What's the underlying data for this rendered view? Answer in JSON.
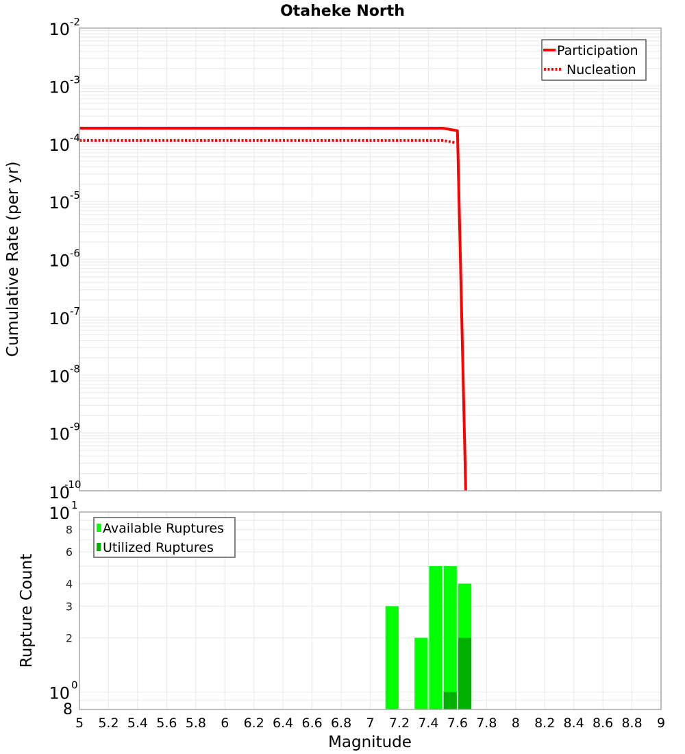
{
  "chart_data": [
    {
      "type": "line",
      "title": "Otaheke North",
      "xlabel": "Magnitude",
      "ylabel": "Cumulative Rate (per yr)",
      "xlim": [
        5,
        9
      ],
      "ylim": [
        1e-10,
        0.01
      ],
      "yscale": "log",
      "grid": true,
      "legend_position": "upper right",
      "x_ticks": [
        "5",
        "5.2",
        "5.4",
        "5.6",
        "5.8",
        "6",
        "6.2",
        "6.4",
        "6.6",
        "6.8",
        "7",
        "7.2",
        "7.4",
        "7.6",
        "7.8",
        "8",
        "8.2",
        "8.4",
        "8.6",
        "8.8",
        "9"
      ],
      "y_ticks": [
        {
          "base": "10",
          "exp": "-2",
          "value": 0.01
        },
        {
          "base": "10",
          "exp": "-3",
          "value": 0.001
        },
        {
          "base": "10",
          "exp": "-4",
          "value": 0.0001
        },
        {
          "base": "10",
          "exp": "-5",
          "value": 1e-05
        },
        {
          "base": "10",
          "exp": "-6",
          "value": 1e-06
        },
        {
          "base": "10",
          "exp": "-7",
          "value": 1e-07
        },
        {
          "base": "10",
          "exp": "-8",
          "value": 1e-08
        },
        {
          "base": "10",
          "exp": "-9",
          "value": 1e-09
        },
        {
          "base": "10",
          "exp": "-10",
          "value": 1e-10
        }
      ],
      "series": [
        {
          "name": "Participation",
          "style": "solid",
          "color": "#ff0000",
          "x": [
            5.0,
            7.5,
            7.6,
            7.657
          ],
          "y": [
            0.000186,
            0.000186,
            0.000168,
            1e-10
          ]
        },
        {
          "name": "Nucleation",
          "style": "dotted",
          "color": "#ff0000",
          "x": [
            5.0,
            7.5,
            7.59
          ],
          "y": [
            0.000114,
            0.000114,
            0.000104
          ]
        }
      ]
    },
    {
      "type": "bar",
      "xlabel": "Magnitude",
      "ylabel": "Rupture Count",
      "xlim": [
        5,
        9
      ],
      "ylim": [
        0.8,
        10
      ],
      "yscale": "log",
      "grid": true,
      "legend_position": "upper left",
      "y_ticks": [
        {
          "label": "10",
          "exp": "1",
          "value": 10,
          "major": true
        },
        {
          "label": "8",
          "value": 8,
          "major": false
        },
        {
          "label": "6",
          "value": 6,
          "major": false
        },
        {
          "label": "4",
          "value": 4,
          "major": false
        },
        {
          "label": "3",
          "value": 3,
          "major": false
        },
        {
          "label": "2",
          "value": 2,
          "major": false
        },
        {
          "label": "10",
          "exp": "0",
          "value": 1,
          "major": true
        },
        {
          "label": "8",
          "value": 0.8,
          "major": "bottom"
        }
      ],
      "bin_width": 0.1,
      "categories": [
        7.15,
        7.35,
        7.45,
        7.55,
        7.65
      ],
      "series": [
        {
          "name": "Available Ruptures",
          "color": "#00ff00",
          "values": [
            3,
            2,
            5,
            5,
            4
          ]
        },
        {
          "name": "Utilized Ruptures",
          "color": "#00b000",
          "values": [
            0,
            0,
            0,
            1,
            2
          ]
        }
      ]
    }
  ]
}
